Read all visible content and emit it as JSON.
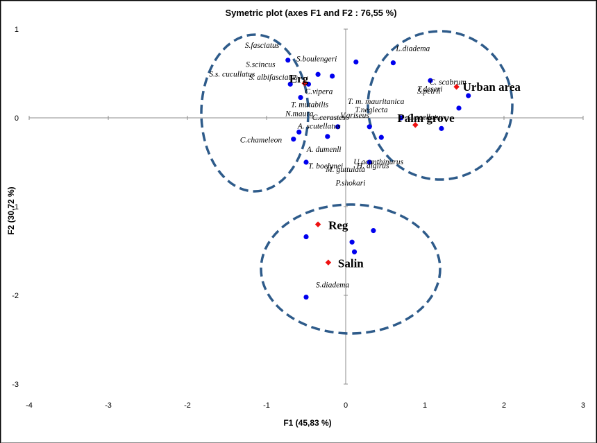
{
  "chart_data": {
    "type": "scatter",
    "title": "Symetric plot  (axes F1 and F2 : 76,55 %)",
    "xlabel": "F1 (45,83 %)",
    "ylabel": "F2 (30,72 %)",
    "xlim": [
      -4,
      3
    ],
    "ylim": [
      -3,
      1
    ],
    "xticks": [
      "-4",
      "-3",
      "-2",
      "-1",
      "0",
      "1",
      "2",
      "3"
    ],
    "yticks": [
      "1",
      "0",
      "-1",
      "-2",
      "-3"
    ],
    "grid": false,
    "colors": {
      "species": "#0000ee",
      "habitat": "#ee1111",
      "ellipse": "#2e5b8a"
    },
    "series": [
      {
        "points": [
          {
            "label": "S.fasciatus",
            "x": -0.73,
            "y": 0.65
          },
          {
            "label": "S.boulengeri",
            "x": 0.13,
            "y": 0.63
          },
          {
            "label": "S.scincus",
            "x": -0.35,
            "y": 0.49
          },
          {
            "label": "S. albifasciatus",
            "x": -0.17,
            "y": 0.47
          },
          {
            "label": "S.s. cucullatus",
            "x": -0.7,
            "y": 0.38
          },
          {
            "label": "C.vipera",
            "x": -0.47,
            "y": 0.38
          },
          {
            "label": "T. mutabilis",
            "x": -0.57,
            "y": 0.23
          },
          {
            "label": "A. scutellatus",
            "x": -0.59,
            "y": -0.16
          },
          {
            "label": "C.chameleon",
            "x": -0.66,
            "y": -0.24
          },
          {
            "label": "A. dumenli",
            "x": -0.23,
            "y": -0.21
          },
          {
            "label": "L.diadema",
            "x": 0.6,
            "y": 0.62
          },
          {
            "label": "S.petrii",
            "x": 1.07,
            "y": 0.42
          },
          {
            "label": "C. scabrum",
            "x": 1.55,
            "y": 0.25
          },
          {
            "label": "T.deseri",
            "x": 1.43,
            "y": 0.11
          },
          {
            "label": "T. m. mauritanica",
            "x": 0.7,
            "y": 0.0
          },
          {
            "label": "C.ocellatus",
            "x": 1.21,
            "y": -0.12
          },
          {
            "label": "T.neglecta",
            "x": 0.45,
            "y": -0.22
          },
          {
            "label": "H. algirus",
            "x": 0.35,
            "y": -1.27
          },
          {
            "label": "M. guttulata",
            "x": 0.08,
            "y": -1.4
          },
          {
            "label": "P.shokari",
            "x": 0.11,
            "y": -1.51
          },
          {
            "label": "N.maura",
            "x": -0.5,
            "y": -1.34
          },
          {
            "label": "S.diadema",
            "x": -0.5,
            "y": -2.02
          },
          {
            "label": "C.cerastes",
            "x": -0.1,
            "y": -0.1
          },
          {
            "label": "V.griseus",
            "x": 0.3,
            "y": -0.1
          },
          {
            "label": "T. boehmei",
            "x": -0.5,
            "y": -0.5
          },
          {
            "label": "U.acanthinurus",
            "x": 0.3,
            "y": -0.5
          }
        ]
      },
      {
        "points": [
          {
            "label": "Erg",
            "x": -0.52,
            "y": 0.39
          },
          {
            "label": "Urban area",
            "x": 1.4,
            "y": 0.35
          },
          {
            "label": "Palm grove",
            "x": 0.88,
            "y": -0.08
          },
          {
            "label": "Reg",
            "x": -0.35,
            "y": -1.2
          },
          {
            "label": "Salin",
            "x": -0.22,
            "y": -1.63
          }
        ]
      }
    ]
  }
}
